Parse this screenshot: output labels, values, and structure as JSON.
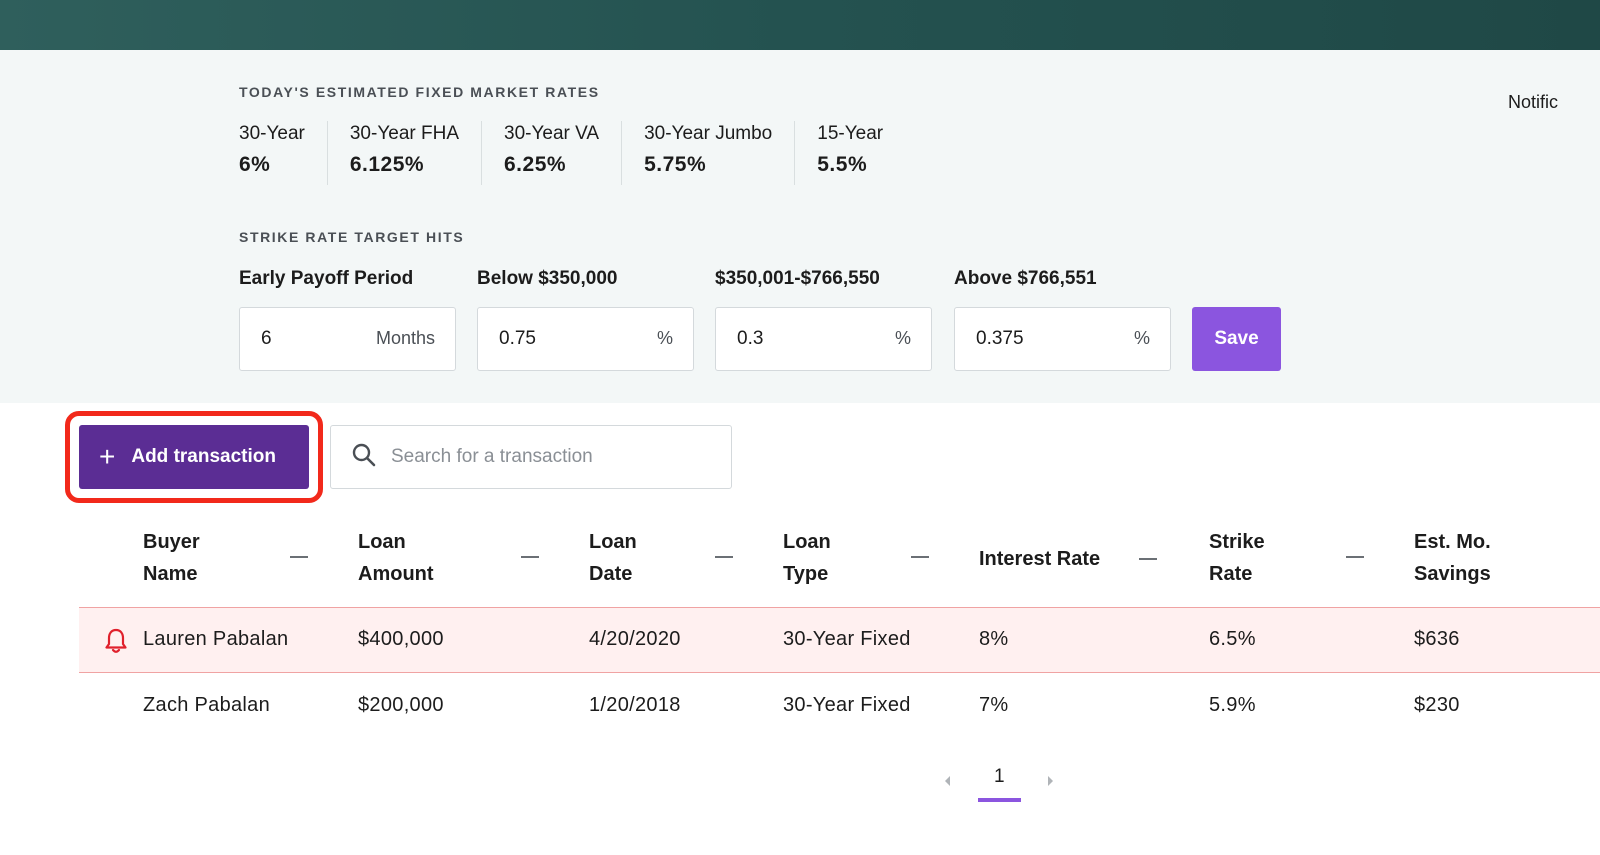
{
  "colors": {
    "header_bg": "#245250",
    "panel_bg": "#f3f7f7",
    "primary": "#5b2d94",
    "save": "#8b55df",
    "alert_row": "#fff0f0",
    "alert_icon": "#e0202c",
    "highlight": "#f2291b"
  },
  "top_right": {
    "notification_text": "Notific"
  },
  "market_rates": {
    "title": "TODAY'S ESTIMATED FIXED MARKET RATES",
    "items": [
      {
        "label": "30-Year",
        "value": "6%"
      },
      {
        "label": "30-Year FHA",
        "value": "6.125%"
      },
      {
        "label": "30-Year VA",
        "value": "6.25%"
      },
      {
        "label": "30-Year Jumbo",
        "value": "5.75%"
      },
      {
        "label": "15-Year",
        "value": "5.5%"
      }
    ]
  },
  "strike": {
    "title": "STRIKE RATE TARGET HITS",
    "fields": [
      {
        "label": "Early Payoff Period",
        "value": "6",
        "unit": "Months"
      },
      {
        "label": "Below $350,000",
        "value": "0.75",
        "unit": "%"
      },
      {
        "label": "$350,001-$766,550",
        "value": "0.3",
        "unit": "%"
      },
      {
        "label": "Above $766,551",
        "value": "0.375",
        "unit": "%"
      }
    ],
    "save_label": "Save"
  },
  "toolbar": {
    "add_label": "Add transaction",
    "search_placeholder": "Search for a transaction"
  },
  "table": {
    "headers": [
      {
        "line1": "Buyer",
        "line2": "Name"
      },
      {
        "line1": "Loan",
        "line2": "Amount"
      },
      {
        "line1": "Loan",
        "line2": "Date"
      },
      {
        "line1": "Loan",
        "line2": "Type"
      },
      {
        "line1": "Interest Rate",
        "line2": ""
      },
      {
        "line1": "Strike",
        "line2": "Rate"
      },
      {
        "line1": "Est. Mo.",
        "line2": "Savings"
      }
    ],
    "rows": [
      {
        "alert": true,
        "buyer": "Lauren Pabalan",
        "amount": "$400,000",
        "date": "4/20/2020",
        "type": "30-Year Fixed",
        "interest": "8%",
        "strike": "6.5%",
        "savings": "$636"
      },
      {
        "alert": false,
        "buyer": "Zach Pabalan",
        "amount": "$200,000",
        "date": "1/20/2018",
        "type": "30-Year Fixed",
        "interest": "7%",
        "strike": "5.9%",
        "savings": "$230"
      }
    ]
  },
  "pagination": {
    "current_page": "1"
  }
}
